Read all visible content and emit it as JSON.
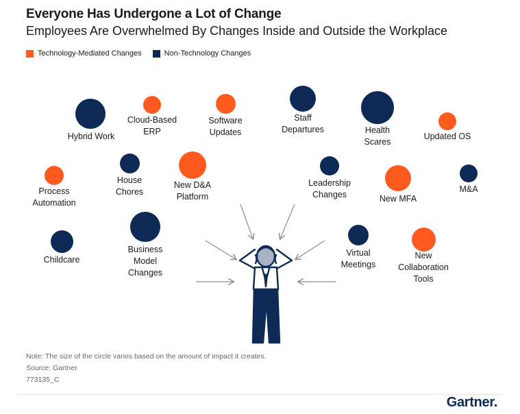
{
  "header": {
    "title": "Everyone Has Undergone a Lot of Change",
    "subtitle": "Employees Are Overwhelmed By Changes Inside and Outside the Workplace"
  },
  "legend": {
    "tech": {
      "label": "Technology-Mediated Changes",
      "color": "#ff5a1f"
    },
    "nontech": {
      "label": "Non-Technology Changes",
      "color": "#0c2a55"
    }
  },
  "changes": {
    "hybrid_work": {
      "label": "Hybrid Work",
      "type": "nontech"
    },
    "cloud_erp": {
      "line1": "Cloud-Based",
      "line2": "ERP",
      "type": "tech"
    },
    "software_updates": {
      "line1": "Software",
      "line2": "Updates",
      "type": "tech"
    },
    "staff_departures": {
      "line1": "Staff",
      "line2": "Departures",
      "type": "nontech"
    },
    "health_scares": {
      "line1": "Health",
      "line2": "Scares",
      "type": "nontech"
    },
    "updated_os": {
      "label": "Updated OS",
      "type": "tech"
    },
    "process_automation": {
      "line1": "Process",
      "line2": "Automation",
      "type": "tech"
    },
    "house_chores": {
      "line1": "House",
      "line2": "Chores",
      "type": "nontech"
    },
    "new_da_platform": {
      "line1": "New D&A",
      "line2": "Platform",
      "type": "tech"
    },
    "leadership_changes": {
      "line1": "Leadership",
      "line2": "Changes",
      "type": "nontech"
    },
    "new_mfa": {
      "label": "New MFA",
      "type": "tech"
    },
    "ma": {
      "label": "M&A",
      "type": "nontech"
    },
    "childcare": {
      "label": "Childcare",
      "type": "nontech"
    },
    "business_model_changes": {
      "line1": "Business",
      "line2": "Model",
      "line3": "Changes",
      "type": "nontech"
    },
    "virtual_meetings": {
      "line1": "Virtual",
      "line2": "Meetings",
      "type": "nontech"
    },
    "new_collaboration_tools": {
      "line1": "New",
      "line2": "Collaboration",
      "line3": "Tools",
      "type": "tech"
    }
  },
  "footer": {
    "note": "Note: The size of the circle varies based on the amount of impact it creates.",
    "source": "Source: Gartner",
    "id": "773135_C",
    "logo": "Gartner."
  }
}
